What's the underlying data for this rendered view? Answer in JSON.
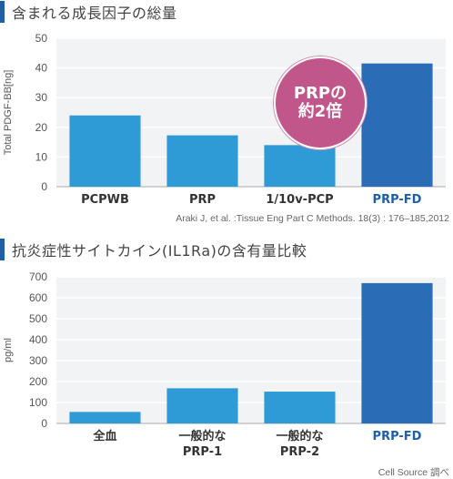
{
  "sections": [
    {
      "title": "含まれる成長因子の総量"
    },
    {
      "title": "抗炎症性サイトカイン(IL1Ra)の含有量比較"
    }
  ],
  "badge": {
    "line1": "PRPの",
    "line2": "約2倍"
  },
  "sources": [
    "Araki J, et al. :Tissue Eng Part C Methods. 18(3) : 176–185,2012",
    "Cell Source 調べ"
  ],
  "colors": {
    "bar": "#2e9ad6",
    "highlight_bar": "#2a6cb5",
    "highlight_label": "#1f5fa6",
    "badge": "#c0568a"
  },
  "chart_data": [
    {
      "type": "bar",
      "ylabel": "Total PDGF-BB[ng]",
      "ylim": [
        0,
        50
      ],
      "yticks": [
        0,
        10,
        20,
        30,
        40,
        50
      ],
      "categories": [
        [
          "PCPWB"
        ],
        [
          "PRP"
        ],
        [
          "1/10v-PCP"
        ],
        [
          "PRP-FD"
        ]
      ],
      "values": [
        24,
        17.3,
        14,
        41.5
      ],
      "highlight_index": 3,
      "grid": true
    },
    {
      "type": "bar",
      "ylabel": "pg/ml",
      "ylim": [
        0,
        700
      ],
      "yticks": [
        0,
        100,
        200,
        300,
        400,
        500,
        600,
        700
      ],
      "categories": [
        [
          "全血"
        ],
        [
          "一般的な",
          "PRP-1"
        ],
        [
          "一般的な",
          "PRP-2"
        ],
        [
          "PRP-FD"
        ]
      ],
      "values": [
        55,
        168,
        152,
        670
      ],
      "highlight_index": 3,
      "grid": true
    }
  ]
}
